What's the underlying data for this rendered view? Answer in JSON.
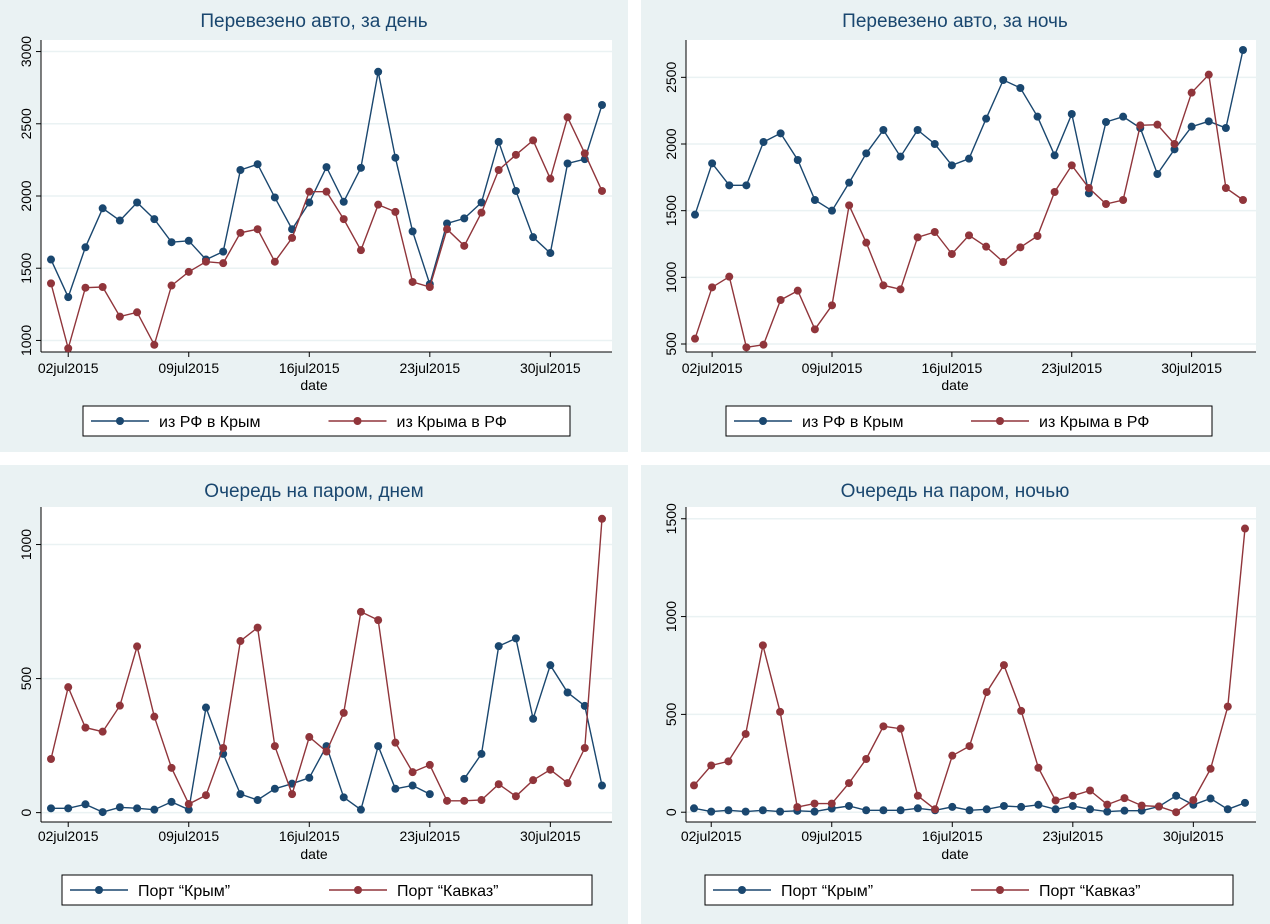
{
  "chart_data": [
    {
      "type": "line",
      "title": "Перевезено авто, за день",
      "xlabel": "date",
      "ylabel": "",
      "x_ticks": [
        "02jul2015",
        "09jul2015",
        "16jul2015",
        "23jul2015",
        "30jul2015"
      ],
      "y_ticks": [
        1000,
        1500,
        2000,
        2500,
        3000
      ],
      "ylim": [
        920,
        3080
      ],
      "grid": true,
      "legend": "bottom",
      "x": [
        "2015-07-01",
        "2015-07-02",
        "2015-07-03",
        "2015-07-04",
        "2015-07-05",
        "2015-07-06",
        "2015-07-07",
        "2015-07-08",
        "2015-07-09",
        "2015-07-10",
        "2015-07-11",
        "2015-07-12",
        "2015-07-13",
        "2015-07-14",
        "2015-07-15",
        "2015-07-16",
        "2015-07-17",
        "2015-07-18",
        "2015-07-19",
        "2015-07-20",
        "2015-07-21",
        "2015-07-22",
        "2015-07-23",
        "2015-07-24",
        "2015-07-25",
        "2015-07-26",
        "2015-07-27",
        "2015-07-28",
        "2015-07-29",
        "2015-07-30",
        "2015-07-31",
        "2015-08-01",
        "2015-08-02"
      ],
      "series": [
        {
          "name": "из РФ в Крым",
          "color": "#1a476f",
          "values": [
            1560,
            1300,
            1645,
            1915,
            1830,
            1955,
            1840,
            1680,
            1690,
            1560,
            1615,
            2180,
            2220,
            1990,
            1770,
            1955,
            2200,
            1960,
            2195,
            2860,
            2265,
            1755,
            1390,
            1810,
            1845,
            1955,
            2375,
            2035,
            1715,
            1605,
            2225,
            2255,
            2630
          ]
        },
        {
          "name": "из Крыма в РФ",
          "color": "#90353b",
          "values": [
            1395,
            945,
            1365,
            1370,
            1165,
            1195,
            970,
            1380,
            1475,
            1545,
            1535,
            1745,
            1770,
            1545,
            1710,
            2030,
            2030,
            1840,
            1625,
            1940,
            1890,
            1405,
            1370,
            1770,
            1655,
            1885,
            2180,
            2285,
            2385,
            2120,
            2545,
            2295,
            2035
          ]
        }
      ]
    },
    {
      "type": "line",
      "title": "Перевезено авто, за ночь",
      "xlabel": "date",
      "ylabel": "",
      "x_ticks": [
        "02jul2015",
        "09jul2015",
        "16jul2015",
        "23jul2015",
        "30jul2015"
      ],
      "y_ticks": [
        500,
        1000,
        1500,
        2000,
        2500
      ],
      "ylim": [
        440,
        2780
      ],
      "grid": true,
      "legend": "bottom",
      "x": [
        "2015-07-01",
        "2015-07-02",
        "2015-07-03",
        "2015-07-04",
        "2015-07-05",
        "2015-07-06",
        "2015-07-07",
        "2015-07-08",
        "2015-07-09",
        "2015-07-10",
        "2015-07-11",
        "2015-07-12",
        "2015-07-13",
        "2015-07-14",
        "2015-07-15",
        "2015-07-16",
        "2015-07-17",
        "2015-07-18",
        "2015-07-19",
        "2015-07-20",
        "2015-07-21",
        "2015-07-22",
        "2015-07-23",
        "2015-07-24",
        "2015-07-25",
        "2015-07-26",
        "2015-07-27",
        "2015-07-28",
        "2015-07-29",
        "2015-07-30",
        "2015-07-31",
        "2015-08-01",
        "2015-08-02"
      ],
      "series": [
        {
          "name": "из РФ в Крым",
          "color": "#1a476f",
          "values": [
            1470,
            1855,
            1690,
            1690,
            2015,
            2080,
            1880,
            1580,
            1500,
            1710,
            1930,
            2105,
            1905,
            2105,
            2000,
            1840,
            1890,
            2190,
            2480,
            2420,
            2205,
            1915,
            2225,
            1630,
            2165,
            2205,
            2120,
            1775,
            1960,
            2130,
            2170,
            2120,
            2705
          ]
        },
        {
          "name": "из Крыма в РФ",
          "color": "#90353b",
          "values": [
            540,
            925,
            1005,
            475,
            495,
            830,
            900,
            610,
            790,
            1540,
            1260,
            940,
            910,
            1300,
            1340,
            1175,
            1315,
            1230,
            1115,
            1225,
            1310,
            1640,
            1840,
            1670,
            1550,
            1580,
            2140,
            2145,
            2000,
            2385,
            2520,
            1670,
            1580
          ]
        }
      ]
    },
    {
      "type": "line",
      "title": "Очередь на паром, днем",
      "xlabel": "date",
      "ylabel": "",
      "x_ticks": [
        "02jul2015",
        "09jul2015",
        "16jul2015",
        "23jul2015",
        "30jul2015"
      ],
      "y_ticks": [
        0,
        500,
        1000
      ],
      "ylim": [
        -35,
        1140
      ],
      "grid": true,
      "legend": "bottom",
      "x": [
        "2015-07-01",
        "2015-07-02",
        "2015-07-03",
        "2015-07-04",
        "2015-07-05",
        "2015-07-06",
        "2015-07-07",
        "2015-07-08",
        "2015-07-09",
        "2015-07-10",
        "2015-07-11",
        "2015-07-12",
        "2015-07-13",
        "2015-07-14",
        "2015-07-15",
        "2015-07-16",
        "2015-07-17",
        "2015-07-18",
        "2015-07-19",
        "2015-07-20",
        "2015-07-21",
        "2015-07-22",
        "2015-07-23",
        "2015-07-24",
        "2015-07-25",
        "2015-07-26",
        "2015-07-27",
        "2015-07-28",
        "2015-07-29",
        "2015-07-30",
        "2015-07-31",
        "2015-08-01",
        "2015-08-02"
      ],
      "series": [
        {
          "name": "Порт “Крым”",
          "color": "#1a476f",
          "values": [
            16,
            16,
            31,
            2,
            20,
            16,
            11,
            40,
            11,
            392,
            219,
            69,
            47,
            89,
            108,
            130,
            248,
            57,
            11,
            248,
            89,
            101,
            69,
            null,
            126,
            219,
            621,
            650,
            350,
            550,
            448,
            398,
            101
          ]
        },
        {
          "name": "Порт “Кавказ”",
          "color": "#90353b",
          "values": [
            200,
            468,
            317,
            302,
            399,
            620,
            358,
            167,
            32,
            65,
            241,
            640,
            690,
            248,
            69,
            282,
            228,
            372,
            749,
            718,
            261,
            151,
            178,
            44,
            44,
            47,
            106,
            61,
            121,
            160,
            110,
            241,
            1096
          ]
        }
      ]
    },
    {
      "type": "line",
      "title": "Очередь на паром, ночью",
      "xlabel": "date",
      "ylabel": "",
      "x_ticks": [
        "02jul2015",
        "09jul2015",
        "16jul2015",
        "23jul2015",
        "30jul2015"
      ],
      "y_ticks": [
        0,
        500,
        1000,
        1500
      ],
      "ylim": [
        -50,
        1560
      ],
      "grid": true,
      "legend": "bottom",
      "x": [
        "2015-07-01",
        "2015-07-02",
        "2015-07-03",
        "2015-07-04",
        "2015-07-05",
        "2015-07-06",
        "2015-07-07",
        "2015-07-08",
        "2015-07-09",
        "2015-07-10",
        "2015-07-11",
        "2015-07-12",
        "2015-07-13",
        "2015-07-14",
        "2015-07-15",
        "2015-07-16",
        "2015-07-17",
        "2015-07-18",
        "2015-07-19",
        "2015-07-20",
        "2015-07-21",
        "2015-07-22",
        "2015-07-23",
        "2015-07-24",
        "2015-07-25",
        "2015-07-26",
        "2015-07-27",
        "2015-07-28",
        "2015-07-29",
        "2015-07-30",
        "2015-07-31",
        "2015-08-01",
        "2015-08-02"
      ],
      "series": [
        {
          "name": "Порт “Крым”",
          "color": "#1a476f",
          "values": [
            20,
            3,
            10,
            3,
            10,
            3,
            7,
            3,
            19,
            32,
            10,
            10,
            10,
            20,
            10,
            27,
            10,
            15,
            32,
            27,
            38,
            15,
            32,
            15,
            3,
            8,
            8,
            29,
            84,
            38,
            70,
            15,
            48
          ]
        },
        {
          "name": "Порт “Кавказ”",
          "color": "#90353b",
          "values": [
            137,
            239,
            260,
            400,
            853,
            513,
            26,
            44,
            44,
            149,
            272,
            439,
            427,
            84,
            15,
            289,
            338,
            614,
            752,
            518,
            227,
            60,
            84,
            111,
            39,
            72,
            34,
            29,
            0,
            62,
            222,
            540,
            1450
          ]
        }
      ]
    }
  ]
}
